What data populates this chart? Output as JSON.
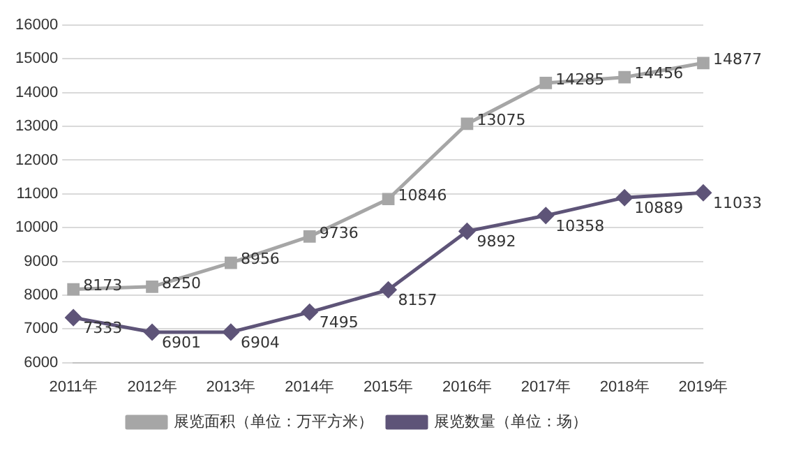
{
  "chart_data": {
    "type": "line",
    "categories": [
      "2011年",
      "2012年",
      "2013年",
      "2014年",
      "2015年",
      "2016年",
      "2017年",
      "2018年",
      "2019年"
    ],
    "series": [
      {
        "name": "展览面积（单位：万平方米）",
        "color": "#a6a6a6",
        "marker": "square",
        "values": [
          8173,
          8250,
          8956,
          9736,
          10846,
          13075,
          14285,
          14456,
          14877
        ]
      },
      {
        "name": "展览数量（单位：场）",
        "color": "#5e5478",
        "marker": "diamond",
        "values": [
          7333,
          6901,
          6904,
          7495,
          8157,
          9892,
          10358,
          10889,
          11033
        ]
      }
    ],
    "ylim": [
      6000,
      16000
    ],
    "yticks": [
      6000,
      7000,
      8000,
      9000,
      10000,
      11000,
      12000,
      13000,
      14000,
      15000,
      16000
    ],
    "grid": "y",
    "legend": "bottom",
    "data_labels": true,
    "line_style": "solid"
  }
}
